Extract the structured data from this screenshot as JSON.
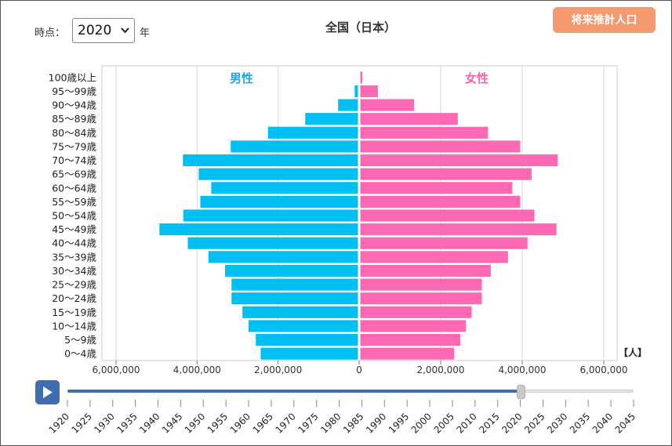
{
  "controls": {
    "period_label": "時点：",
    "selected_year": "2020",
    "year_unit": "年",
    "projection_button": "将来推計人口",
    "play_icon": "play-icon"
  },
  "chart_data": {
    "type": "bar",
    "orientation": "horizontal",
    "title": "全国（日本）",
    "unit_label": "【人】",
    "categories": [
      "100歳以上",
      "95〜99歳",
      "90〜94歳",
      "85〜89歳",
      "80〜84歳",
      "75〜79歳",
      "70〜74歳",
      "65〜69歳",
      "60〜64歳",
      "55〜59歳",
      "50〜54歳",
      "45〜49歳",
      "40〜44歳",
      "35〜39歳",
      "30〜34歳",
      "25〜29歳",
      "20〜24歳",
      "15〜19歳",
      "10〜14歳",
      "5〜9歳",
      "0〜4歳"
    ],
    "series": [
      {
        "name": "男性",
        "color": "#00bff3",
        "label_color": "#1aa9e6",
        "values": [
          12000,
          110000,
          520000,
          1330000,
          2250000,
          3170000,
          4350000,
          3960000,
          3650000,
          3920000,
          4340000,
          4930000,
          4230000,
          3720000,
          3310000,
          3150000,
          3150000,
          2880000,
          2730000,
          2550000,
          2430000
        ]
      },
      {
        "name": "女性",
        "color": "#ff69b4",
        "label_color": "#ff5fa8",
        "values": [
          80000,
          460000,
          1350000,
          2420000,
          3160000,
          3950000,
          4870000,
          4230000,
          3760000,
          3950000,
          4300000,
          4840000,
          4130000,
          3650000,
          3230000,
          3010000,
          3010000,
          2760000,
          2620000,
          2480000,
          2330000
        ]
      }
    ],
    "x_ticks": [
      "6,000,000",
      "4,000,000",
      "2,000,000",
      "0",
      "2,000,000",
      "4,000,000",
      "6,000,000"
    ],
    "xlim": [
      -6000000,
      6000000
    ],
    "grid": true,
    "legend": "inside-top"
  },
  "timeline": {
    "years": [
      "1920",
      "1925",
      "1930",
      "1935",
      "1940",
      "1945",
      "1950",
      "1955",
      "1960",
      "1965",
      "1970",
      "1975",
      "1980",
      "1985",
      "1990",
      "1995",
      "2000",
      "2005",
      "2010",
      "2015",
      "2020",
      "2025",
      "2030",
      "2035",
      "2040",
      "2045"
    ],
    "current_year": "2020",
    "track_color": "#3f6db1"
  }
}
